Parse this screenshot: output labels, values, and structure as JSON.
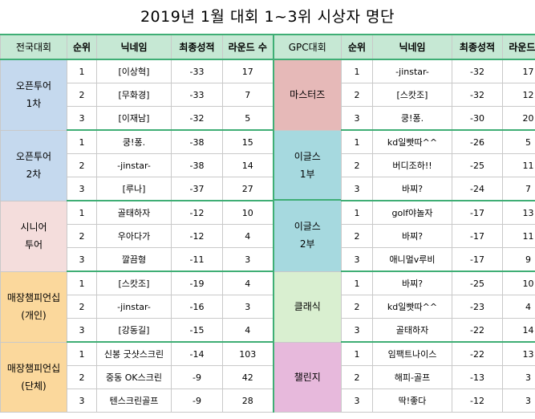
{
  "title": "2019년 1월 대회 1~3위 시상자 명단",
  "headers": {
    "left": [
      "전국대회",
      "순위",
      "닉네임",
      "최종성적",
      "라운드 수"
    ],
    "right": [
      "GPC대회",
      "순위",
      "닉네임",
      "최종성적",
      "라운드 수"
    ]
  },
  "groups": [
    {
      "left": {
        "line1": "오픈투어",
        "line2": "1차",
        "color": "#c5d9ee"
      },
      "right": {
        "line1": "마스터즈",
        "line2": "",
        "color": "#e6b9b8"
      },
      "rows": [
        {
          "l": [
            "1",
            "[이상혁]",
            "-33",
            "17"
          ],
          "r": [
            "1",
            "-jinstar-",
            "-32",
            "17"
          ]
        },
        {
          "l": [
            "2",
            "[무화경]",
            "-33",
            "7"
          ],
          "r": [
            "2",
            "[스캇조]",
            "-32",
            "12"
          ]
        },
        {
          "l": [
            "3",
            "[이재남]",
            "-32",
            "5"
          ],
          "r": [
            "3",
            "쿵!퐁.",
            "-30",
            "20"
          ]
        }
      ]
    },
    {
      "left": {
        "line1": "오픈투어",
        "line2": "2차",
        "color": "#c5d9ee"
      },
      "right": {
        "line1": "이글스",
        "line2": "1부",
        "color": "#a6d9df"
      },
      "rows": [
        {
          "l": [
            "1",
            "쿵!퐁.",
            "-38",
            "15"
          ],
          "r": [
            "1",
            "kd일빳따^^",
            "-26",
            "5"
          ]
        },
        {
          "l": [
            "2",
            "-jinstar-",
            "-38",
            "14"
          ],
          "r": [
            "2",
            "버디조하!!",
            "-25",
            "11"
          ]
        },
        {
          "l": [
            "3",
            "[루나]",
            "-37",
            "27"
          ],
          "r": [
            "3",
            "바찌?",
            "-24",
            "7"
          ]
        }
      ]
    },
    {
      "left": {
        "line1": "시니어",
        "line2": "투어",
        "color": "#f4dddc"
      },
      "right": {
        "line1": "이글스",
        "line2": "2부",
        "color": "#a6d9df"
      },
      "rows": [
        {
          "l": [
            "1",
            "골태하자",
            "-12",
            "10"
          ],
          "r": [
            "1",
            "golf야놀자",
            "-17",
            "13"
          ]
        },
        {
          "l": [
            "2",
            "우아다가",
            "-12",
            "4"
          ],
          "r": [
            "2",
            "바찌?",
            "-17",
            "11"
          ]
        },
        {
          "l": [
            "3",
            "깔끔형",
            "-11",
            "3"
          ],
          "r": [
            "3",
            "애니멀v루비",
            "-17",
            "9"
          ]
        }
      ]
    },
    {
      "left": {
        "line1": "매장챔피언십",
        "line2": "(개인)",
        "color": "#fbd89c"
      },
      "right": {
        "line1": "클래식",
        "line2": "",
        "color": "#d9efd0"
      },
      "rows": [
        {
          "l": [
            "1",
            "[스캇조]",
            "-19",
            "4"
          ],
          "r": [
            "1",
            "바찌?",
            "-25",
            "10"
          ]
        },
        {
          "l": [
            "2",
            "-jinstar-",
            "-16",
            "3"
          ],
          "r": [
            "2",
            "kd일빳따^^",
            "-23",
            "4"
          ]
        },
        {
          "l": [
            "3",
            "[강동길]",
            "-15",
            "4"
          ],
          "r": [
            "3",
            "골태하자",
            "-22",
            "14"
          ]
        }
      ]
    },
    {
      "left": {
        "line1": "매장챔피언십",
        "line2": "(단체)",
        "color": "#fbd89c"
      },
      "right": {
        "line1": "챌린지",
        "line2": "",
        "color": "#e7b9dc"
      },
      "rows": [
        {
          "l": [
            "1",
            "신봉 굿샷스크린",
            "-14",
            "103"
          ],
          "r": [
            "1",
            "임팩트나이스",
            "-22",
            "13"
          ]
        },
        {
          "l": [
            "2",
            "중동 OK스크린",
            "-9",
            "42"
          ],
          "r": [
            "2",
            "해피-골프",
            "-13",
            "3"
          ]
        },
        {
          "l": [
            "3",
            "텐스크린골프",
            "-9",
            "28"
          ],
          "r": [
            "3",
            "딱!좋다",
            "-12",
            "3"
          ]
        }
      ]
    }
  ]
}
